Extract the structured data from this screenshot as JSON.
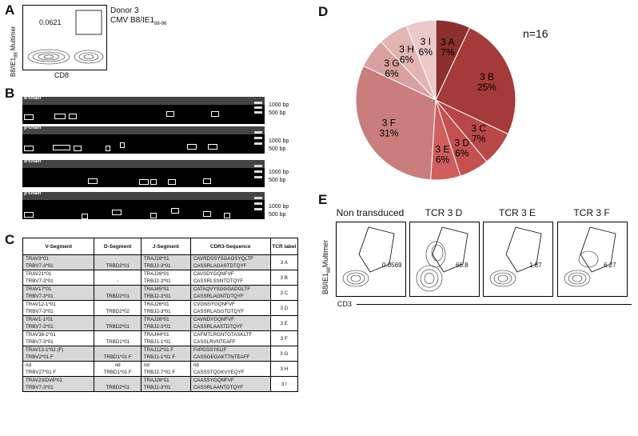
{
  "panels": {
    "a": "A",
    "b": "B",
    "c": "C",
    "d": "D",
    "e": "E"
  },
  "panel_a": {
    "donor": "Donor 3",
    "epitope": "CMV B8/IE1",
    "epitope_sub": "88-96",
    "gate_value": "0.0621",
    "ylabel": "B8/IE1",
    "ylabel_sub": "88",
    "ylabel_tail": " Multimer",
    "xlabel": "CD8"
  },
  "panel_b": {
    "gels": [
      {
        "chain": "α-chain",
        "ticks": [
          "1",
          "1",
          "1",
          "1",
          "1",
          "1",
          "0",
          "1",
          "1",
          "1",
          "1",
          "1",
          "10",
          "1",
          "1",
          "1",
          "1",
          "1",
          "0"
        ]
      },
      {
        "chain": "β-chain",
        "ticks": [
          "1",
          "1",
          "1",
          "1",
          "1",
          "1",
          "0",
          "1",
          "1",
          "1",
          "1",
          "1",
          "10",
          "1",
          "1",
          "1",
          "1",
          "1",
          "0"
        ]
      },
      {
        "chain": "α-chain",
        "ticks": [
          "1",
          "1",
          "1",
          "1",
          "1",
          "1",
          "0",
          "1",
          "1",
          "1",
          "1",
          "1",
          "10",
          "1",
          "1",
          "1",
          "1",
          "1",
          "0"
        ]
      },
      {
        "chain": "β-chain",
        "ticks": [
          "1",
          "1",
          "1",
          "1",
          "1",
          "1",
          "0",
          "1",
          "1",
          "1",
          "1",
          "1",
          "10",
          "1",
          "1",
          "1",
          "1",
          "1",
          "0"
        ]
      }
    ],
    "marker_high": "1000 bp",
    "marker_low": "500 bp"
  },
  "panel_c": {
    "headers": [
      "V-Segment",
      "D-Segment",
      "J-Segment",
      "CDR3-Sequence",
      "TCR label"
    ],
    "rows": [
      {
        "v": "TRAV3*01",
        "d": "",
        "j": "TRAJ28*01",
        "cdr3": "CAVRDSSYSGAGSYQLTF",
        "shade": true
      },
      {
        "v": "TRBV7-3*01",
        "d": "TRBD2*01",
        "j": "TRBJ2-3*01",
        "cdr3": "CASSRLAGASTDTQYF",
        "shade": true
      },
      {
        "v": "TRAV21*01",
        "d": "",
        "j": "TRAJ26*01",
        "cdr3": "CAVSDYGQNFVF",
        "shade": false
      },
      {
        "v": "TRBV7-3*01",
        "d": "-",
        "j": "TRBJ2-3*01",
        "cdr3": "CASSRLSSNTDTQYF",
        "shade": false
      },
      {
        "v": "TRAV17*01",
        "d": "",
        "j": "TRAJ45*01",
        "cdr3": "CATAQVYSGGGADGLTF",
        "shade": true
      },
      {
        "v": "TRBV7-3*01",
        "d": "TRBD2*01",
        "j": "TRBJ2-3*01",
        "cdr3": "CASSRLAGNTDTQYF",
        "shade": true
      },
      {
        "v": "TRAV12-1*01",
        "d": "",
        "j": "TRAJ26*01",
        "cdr3": "CVGNSYGQNFVF",
        "shade": false
      },
      {
        "v": "TRBV7-3*01",
        "d": "TRBD2*02",
        "j": "TRBJ2-3*01",
        "cdr3": "CASSRLAGGTDTQYF",
        "shade": false
      },
      {
        "v": "TRAV1-1*01",
        "d": "",
        "j": "TRAJ26*01",
        "cdr3": "CAVNDYGQNFVF",
        "shade": true
      },
      {
        "v": "TRBV7-3*01",
        "d": "TRBD2*01",
        "j": "TRBJ2-3*01",
        "cdr3": "CASSRLAASTDTQYF",
        "shade": true
      },
      {
        "v": "TRAV38-1*01",
        "d": "",
        "j": "TRAJ44*01",
        "cdr3": "CAFMTLRGNTGTASKLTF",
        "shade": false
      },
      {
        "v": "TRBV7-3*01",
        "d": "TRBD1*01",
        "j": "TRBJ1-1*01",
        "cdr3": "CASSLRVNTEAFF",
        "shade": false
      },
      {
        "v": "TRAV13-1*02 (F)",
        "d": "",
        "j": "TRAJ12*01 F",
        "cdr3": "F#PGSSYKLIF",
        "shade": true
      },
      {
        "v": "TRBV2*01 F",
        "d": "TRBD1*01 F",
        "j": "TRBJ1-1*01 F",
        "cdr3": "CASSGEGAKTTNTEAFF",
        "shade": true
      },
      {
        "v": "nd",
        "d": "nd",
        "j": "nd",
        "cdr3": "nd",
        "shade": false
      },
      {
        "v": "TRBV27*01 F",
        "d": "TRBD1*01 F",
        "j": "TRBJ2-7*01 F",
        "cdr3": "CASSSTQGKVYEQYF",
        "shade": false
      },
      {
        "v": "TRAV23/DV6*01",
        "d": "",
        "j": "TRAJ26*01",
        "cdr3": "CAASSYGQNFVF",
        "shade": true
      },
      {
        "v": "TRBV7-3*01",
        "d": "TRBD2*01",
        "j": "TRBJ2-3*01",
        "cdr3": "CASSRLAANTDTQYF",
        "shade": true
      }
    ],
    "labels": [
      "3 A",
      "3 B",
      "3 C",
      "3 D",
      "3 E",
      "3 F",
      "3 G",
      "3 H",
      "3 I"
    ]
  },
  "chart_data": {
    "type": "pie",
    "title": "",
    "annotation": "n=16",
    "categories": [
      "3 A",
      "3 B",
      "3 C",
      "3 D",
      "3 E",
      "3 F",
      "3 G",
      "3 H",
      "3 I"
    ],
    "values": [
      7,
      25,
      7,
      6,
      6,
      31,
      6,
      6,
      6
    ],
    "labels": [
      "7%",
      "25%",
      "7%",
      "6%",
      "6%",
      "31%",
      "6%",
      "6%",
      "6%"
    ],
    "colors": [
      "#8b2f2f",
      "#a53a3a",
      "#b84848",
      "#c45050",
      "#cf5e5e",
      "#c97d7d",
      "#d9a0a0",
      "#e2b4b4",
      "#ecc9c9"
    ]
  },
  "panel_e": {
    "plots": [
      {
        "title": "Non transduced",
        "value": "0.0569"
      },
      {
        "title": "TCR 3 D",
        "value": "66.8"
      },
      {
        "title": "TCR 3 E",
        "value": "1.87"
      },
      {
        "title": "TCR 3 F",
        "value": "6.27"
      }
    ],
    "ylabel": "B8/IE1",
    "ylabel_sub": "88",
    "ylabel_tail": "Multimer",
    "xlabel": "CD3"
  }
}
